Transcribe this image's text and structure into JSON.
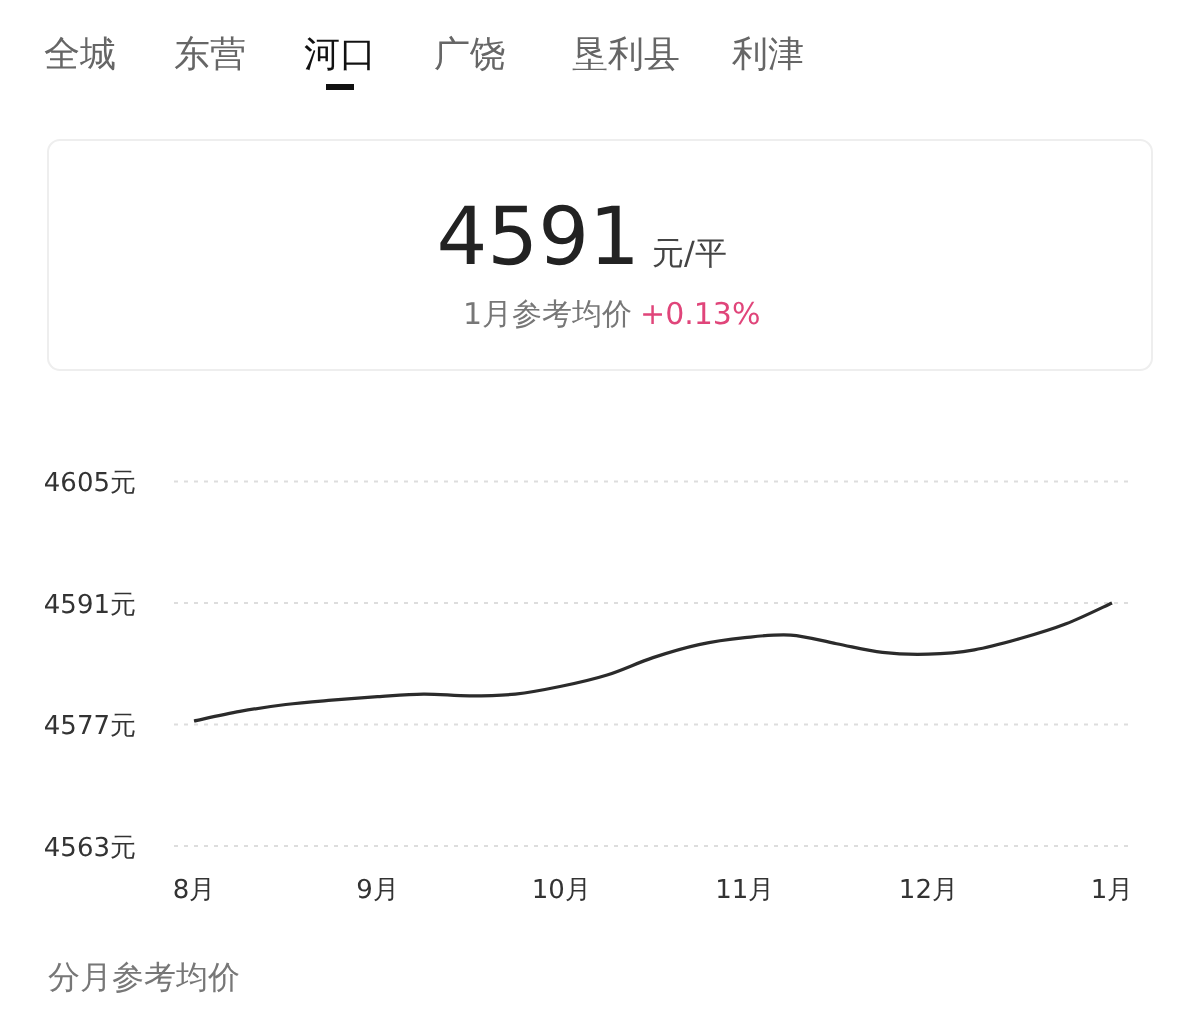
{
  "chart_data": {
    "type": "line",
    "annotations": [
      "全城",
      "东营",
      "河口",
      "广饶",
      "垦利县",
      "利津",
      "4591",
      "元/平",
      "1月参考均价",
      "+0.13%",
      "分月参考均价"
    ],
    "categories": [
      "8月",
      null,
      null,
      null,
      "9月",
      null,
      null,
      null,
      "10月",
      null,
      null,
      null,
      "11月",
      null,
      null,
      null,
      "12月",
      null,
      null,
      null,
      "1月"
    ],
    "series": [
      {
        "color": "#2b2b2b",
        "values": [
          4577.4,
          4578.5,
          4579.3,
          4579.8,
          4580.2,
          4580.5,
          4580.3,
          4580.5,
          4581.4,
          4582.7,
          4584.7,
          4586.2,
          4587.0,
          4587.3,
          4586.3,
          4585.3,
          4585.1,
          4585.6,
          4586.9,
          4588.6,
          4591.0
        ]
      }
    ],
    "ylim": [
      4563,
      4605
    ],
    "yticks": [
      {
        "value": 4563,
        "label": "4563元"
      },
      {
        "value": 4577,
        "label": "4577元"
      },
      {
        "value": 4591,
        "label": "4591元"
      },
      {
        "value": 4605,
        "label": "4605元"
      }
    ],
    "grid": "y",
    "marker": "none",
    "line_style": "solid"
  }
}
